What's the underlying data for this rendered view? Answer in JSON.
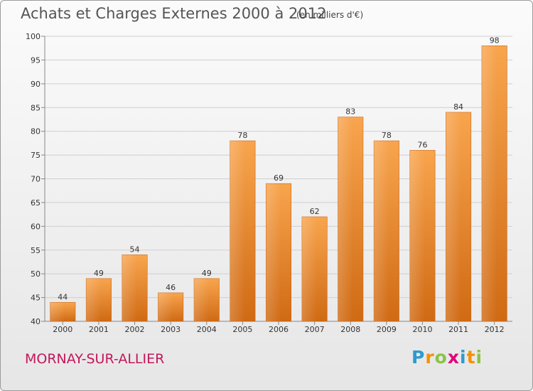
{
  "header": {
    "title": "Achats et Charges Externes 2000 à 2012",
    "unit": "(en milliers d'€)"
  },
  "footer": {
    "commune": "MORNAY-SUR-ALLIER",
    "logo_letters": [
      "P",
      "r",
      "o",
      "x",
      "i",
      "t",
      "i"
    ],
    "logo_colors": [
      "#2e9ad0",
      "#f39200",
      "#8bc34a",
      "#e4007c",
      "#2e9ad0",
      "#f39200",
      "#8bc34a"
    ]
  },
  "colors": {
    "bar_top": "#f8a54e",
    "bar_bottom": "#d06a14",
    "grid": "#cfcfcf",
    "axis_text": "#333333"
  },
  "chart_data": {
    "type": "bar",
    "categories": [
      "2000",
      "2001",
      "2002",
      "2003",
      "2004",
      "2005",
      "2006",
      "2007",
      "2008",
      "2009",
      "2010",
      "2011",
      "2012"
    ],
    "values": [
      44,
      49,
      54,
      46,
      49,
      78,
      69,
      62,
      83,
      78,
      76,
      84,
      98
    ],
    "title": "Achats et Charges Externes 2000 à 2012",
    "unit": "(en milliers d'€)",
    "ylim": [
      40,
      100
    ],
    "yticks": [
      40,
      45,
      50,
      55,
      60,
      65,
      70,
      75,
      80,
      85,
      90,
      95,
      100
    ],
    "grid": true,
    "legend": "none"
  }
}
